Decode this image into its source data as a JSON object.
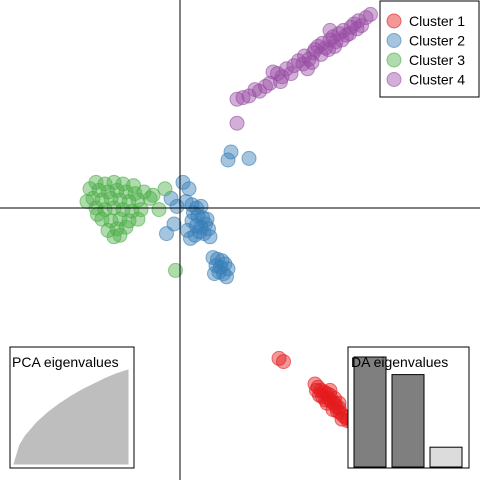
{
  "chart_data": {
    "type": "scatter",
    "title": "",
    "xlabel": "",
    "ylabel": "",
    "xlim": [
      -6,
      10
    ],
    "ylim": [
      -8.5,
      6.5
    ],
    "axes_origin": [
      0,
      0
    ],
    "grid": false,
    "legend": {
      "position": "top-right"
    },
    "series": [
      {
        "name": "Cluster 1",
        "color": "#E41A1C",
        "points": [
          [
            3.3,
            -4.7
          ],
          [
            3.45,
            -4.8
          ],
          [
            4.5,
            -5.5
          ],
          [
            4.6,
            -5.6
          ],
          [
            4.7,
            -5.7
          ],
          [
            4.8,
            -5.75
          ],
          [
            4.9,
            -5.8
          ],
          [
            5.0,
            -5.85
          ],
          [
            4.75,
            -5.9
          ],
          [
            4.85,
            -6.0
          ],
          [
            4.95,
            -5.95
          ],
          [
            5.05,
            -6.05
          ],
          [
            5.15,
            -6.1
          ],
          [
            5.2,
            -6.2
          ],
          [
            5.3,
            -6.25
          ],
          [
            5.1,
            -6.3
          ],
          [
            5.25,
            -6.35
          ],
          [
            5.35,
            -6.4
          ],
          [
            5.45,
            -6.5
          ],
          [
            5.55,
            -6.55
          ],
          [
            4.65,
            -5.85
          ],
          [
            4.55,
            -5.7
          ],
          [
            5.4,
            -6.6
          ],
          [
            5.6,
            -6.65
          ],
          [
            5.75,
            -6.7
          ],
          [
            6.0,
            -6.85
          ],
          [
            5.0,
            -5.7
          ],
          [
            4.9,
            -6.1
          ],
          [
            5.15,
            -5.95
          ],
          [
            5.3,
            -6.1
          ]
        ]
      },
      {
        "name": "Cluster 2",
        "color": "#377EB8",
        "points": [
          [
            1.6,
            1.5
          ],
          [
            2.3,
            1.55
          ],
          [
            1.7,
            1.75
          ],
          [
            0.1,
            0.8
          ],
          [
            0.3,
            0.6
          ],
          [
            0.2,
            0.2
          ],
          [
            0.4,
            0.1
          ],
          [
            0.55,
            0.0
          ],
          [
            0.7,
            0.05
          ],
          [
            0.45,
            -0.15
          ],
          [
            0.6,
            -0.25
          ],
          [
            0.75,
            -0.3
          ],
          [
            0.4,
            -0.4
          ],
          [
            0.55,
            -0.55
          ],
          [
            0.7,
            -0.6
          ],
          [
            0.85,
            -0.5
          ],
          [
            0.65,
            -0.75
          ],
          [
            0.8,
            -0.8
          ],
          [
            0.5,
            -0.85
          ],
          [
            0.95,
            -0.65
          ],
          [
            0.25,
            -0.7
          ],
          [
            -0.2,
            -0.5
          ],
          [
            -0.45,
            -0.8
          ],
          [
            -0.1,
            0.05
          ],
          [
            -0.3,
            0.3
          ],
          [
            0.9,
            -0.35
          ],
          [
            1.0,
            -0.9
          ],
          [
            0.35,
            -0.95
          ],
          [
            1.1,
            -1.55
          ],
          [
            1.25,
            -1.6
          ],
          [
            1.4,
            -1.65
          ],
          [
            1.2,
            -1.8
          ],
          [
            1.35,
            -1.85
          ],
          [
            1.5,
            -1.75
          ],
          [
            1.3,
            -2.0
          ],
          [
            1.45,
            -2.05
          ],
          [
            1.6,
            -1.9
          ],
          [
            1.15,
            -2.05
          ],
          [
            1.55,
            -2.15
          ]
        ]
      },
      {
        "name": "Cluster 3",
        "color": "#4DAF4A",
        "points": [
          [
            -2.8,
            0.8
          ],
          [
            -2.5,
            0.75
          ],
          [
            -2.2,
            0.8
          ],
          [
            -1.9,
            0.75
          ],
          [
            -3.0,
            0.6
          ],
          [
            -2.7,
            0.55
          ],
          [
            -2.4,
            0.5
          ],
          [
            -2.1,
            0.55
          ],
          [
            -1.8,
            0.5
          ],
          [
            -1.5,
            0.45
          ],
          [
            -2.9,
            0.3
          ],
          [
            -2.6,
            0.25
          ],
          [
            -2.3,
            0.3
          ],
          [
            -2.0,
            0.25
          ],
          [
            -1.7,
            0.2
          ],
          [
            -1.4,
            0.25
          ],
          [
            -2.8,
            0.0
          ],
          [
            -2.5,
            -0.05
          ],
          [
            -2.2,
            0.0
          ],
          [
            -1.9,
            -0.05
          ],
          [
            -1.6,
            -0.1
          ],
          [
            -1.3,
            -0.05
          ],
          [
            -2.6,
            -0.35
          ],
          [
            -2.3,
            -0.4
          ],
          [
            -2.0,
            -0.35
          ],
          [
            -1.7,
            -0.4
          ],
          [
            -1.4,
            -0.35
          ],
          [
            -2.4,
            -0.7
          ],
          [
            -2.1,
            -0.65
          ],
          [
            -1.8,
            -0.6
          ],
          [
            -2.0,
            -0.85
          ],
          [
            -2.2,
            -0.9
          ],
          [
            -1.2,
            0.5
          ],
          [
            -1.0,
            0.3
          ],
          [
            -0.7,
            -0.05
          ],
          [
            -0.9,
            0.4
          ],
          [
            -0.5,
            0.6
          ],
          [
            -3.1,
            0.2
          ],
          [
            -0.15,
            -1.95
          ],
          [
            -1.55,
            0.7
          ],
          [
            -2.75,
            -0.2
          ]
        ]
      },
      {
        "name": "Cluster 4",
        "color": "#984EA3",
        "points": [
          [
            1.9,
            2.65
          ],
          [
            3.8,
            4.45
          ],
          [
            3.95,
            4.6
          ],
          [
            4.1,
            4.5
          ],
          [
            4.15,
            4.75
          ],
          [
            4.3,
            4.65
          ],
          [
            4.45,
            4.85
          ],
          [
            4.5,
            4.95
          ],
          [
            4.6,
            5.05
          ],
          [
            4.75,
            5.15
          ],
          [
            4.85,
            5.0
          ],
          [
            5.0,
            5.25
          ],
          [
            5.1,
            5.35
          ],
          [
            5.2,
            5.2
          ],
          [
            5.3,
            5.45
          ],
          [
            5.45,
            5.55
          ],
          [
            5.55,
            5.4
          ],
          [
            5.7,
            5.65
          ],
          [
            5.8,
            5.75
          ],
          [
            5.95,
            5.85
          ],
          [
            6.05,
            5.7
          ],
          [
            6.2,
            5.95
          ],
          [
            6.35,
            6.05
          ],
          [
            4.25,
            4.35
          ],
          [
            4.4,
            4.55
          ],
          [
            4.95,
            4.95
          ],
          [
            5.15,
            5.05
          ],
          [
            5.4,
            5.25
          ],
          [
            5.65,
            5.45
          ],
          [
            5.9,
            5.6
          ],
          [
            3.4,
            4.1
          ],
          [
            3.25,
            4.2
          ],
          [
            3.1,
            4.25
          ],
          [
            3.55,
            4.35
          ],
          [
            3.0,
            3.9
          ],
          [
            3.35,
            3.95
          ],
          [
            3.7,
            4.2
          ],
          [
            2.85,
            3.8
          ],
          [
            2.5,
            3.7
          ],
          [
            2.3,
            3.5
          ],
          [
            2.65,
            3.65
          ],
          [
            2.1,
            3.45
          ],
          [
            1.9,
            3.4
          ],
          [
            4.7,
            4.8
          ],
          [
            5.0,
            5.55
          ]
        ]
      }
    ],
    "insets": [
      {
        "title": "PCA eigenvalues",
        "type": "area",
        "color": "#BEBEBE",
        "curve": [
          [
            0,
            0
          ],
          [
            0.05,
            0.2
          ],
          [
            0.1,
            0.3
          ],
          [
            0.2,
            0.44
          ],
          [
            0.3,
            0.55
          ],
          [
            0.4,
            0.64
          ],
          [
            0.5,
            0.72
          ],
          [
            0.6,
            0.79
          ],
          [
            0.7,
            0.85
          ],
          [
            0.8,
            0.91
          ],
          [
            0.9,
            0.96
          ],
          [
            1.0,
            1.0
          ]
        ]
      },
      {
        "title": "DA eigenvalues",
        "type": "bar",
        "values": [
          100,
          84,
          18
        ],
        "colors": [
          "#7F7F7F",
          "#7F7F7F",
          "#DCDCDC"
        ]
      }
    ]
  }
}
